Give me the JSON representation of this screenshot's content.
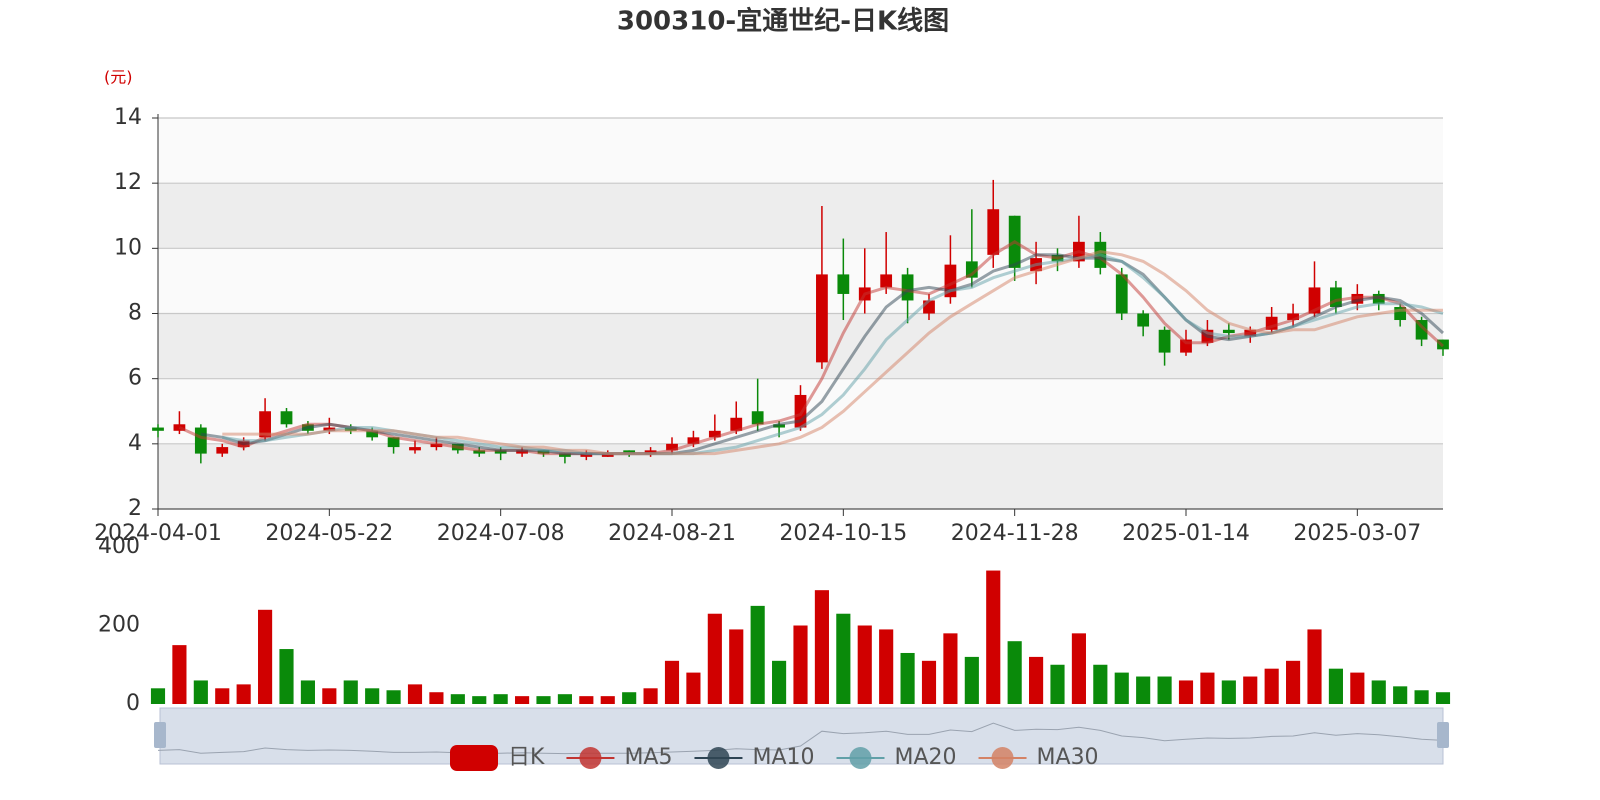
{
  "chart_data": {
    "type": "candlestick",
    "title": "300310-宜通世纪-日K线图",
    "y_unit": "(元)",
    "up_color": "#d00000",
    "down_color": "#0a8a0a",
    "grid": true,
    "ylim": [
      2,
      14
    ],
    "yticks": [
      2,
      4,
      6,
      8,
      10,
      12,
      14
    ],
    "categories": [
      "2024-04-01",
      null,
      null,
      null,
      null,
      null,
      null,
      null,
      "2024-05-22",
      null,
      null,
      null,
      null,
      null,
      null,
      null,
      "2024-07-08",
      null,
      null,
      null,
      null,
      null,
      null,
      null,
      "2024-08-21",
      null,
      null,
      null,
      null,
      null,
      null,
      null,
      "2024-10-15",
      null,
      null,
      null,
      null,
      null,
      null,
      null,
      "2024-11-28",
      null,
      null,
      null,
      null,
      null,
      null,
      null,
      "2025-01-14",
      null,
      null,
      null,
      null,
      null,
      null,
      null,
      "2025-03-07",
      null,
      null,
      null,
      null
    ],
    "series": [
      {
        "name": "日K",
        "type": "candlestick",
        "color": "#c23531",
        "values": [
          [
            4.5,
            4.4,
            4.2,
            4.6
          ],
          [
            4.4,
            4.6,
            4.3,
            5.0
          ],
          [
            4.5,
            3.7,
            3.4,
            4.6
          ],
          [
            3.7,
            3.9,
            3.6,
            4.0
          ],
          [
            3.9,
            4.1,
            3.8,
            4.2
          ],
          [
            4.2,
            5.0,
            4.1,
            5.4
          ],
          [
            5.0,
            4.6,
            4.5,
            5.1
          ],
          [
            4.6,
            4.4,
            4.3,
            4.7
          ],
          [
            4.4,
            4.5,
            4.3,
            4.8
          ],
          [
            4.5,
            4.4,
            4.3,
            4.6
          ],
          [
            4.4,
            4.2,
            4.1,
            4.5
          ],
          [
            4.2,
            3.9,
            3.7,
            4.2
          ],
          [
            3.8,
            3.9,
            3.7,
            4.1
          ],
          [
            3.9,
            4.0,
            3.8,
            4.2
          ],
          [
            4.0,
            3.8,
            3.7,
            4.0
          ],
          [
            3.8,
            3.7,
            3.6,
            3.9
          ],
          [
            3.8,
            3.7,
            3.5,
            3.9
          ],
          [
            3.7,
            3.8,
            3.6,
            3.9
          ],
          [
            3.8,
            3.7,
            3.6,
            3.8
          ],
          [
            3.7,
            3.6,
            3.4,
            3.7
          ],
          [
            3.6,
            3.7,
            3.5,
            3.8
          ],
          [
            3.6,
            3.7,
            3.6,
            3.8
          ],
          [
            3.8,
            3.7,
            3.6,
            3.8
          ],
          [
            3.7,
            3.8,
            3.6,
            3.9
          ],
          [
            3.8,
            4.0,
            3.7,
            4.2
          ],
          [
            4.0,
            4.2,
            3.9,
            4.4
          ],
          [
            4.2,
            4.4,
            4.1,
            4.9
          ],
          [
            4.4,
            4.8,
            4.3,
            5.3
          ],
          [
            5.0,
            4.6,
            4.4,
            6.0
          ],
          [
            4.6,
            4.5,
            4.2,
            4.7
          ],
          [
            4.5,
            5.5,
            4.4,
            5.8
          ],
          [
            6.5,
            9.2,
            6.3,
            11.3
          ],
          [
            9.2,
            8.6,
            7.8,
            10.3
          ],
          [
            8.4,
            8.8,
            8.0,
            10.0
          ],
          [
            8.8,
            9.2,
            8.6,
            10.5
          ],
          [
            9.2,
            8.4,
            7.7,
            9.4
          ],
          [
            8.0,
            8.4,
            7.8,
            8.6
          ],
          [
            8.5,
            9.5,
            8.3,
            10.4
          ],
          [
            9.6,
            9.1,
            8.8,
            11.2
          ],
          [
            9.8,
            11.2,
            9.4,
            12.1
          ],
          [
            11.0,
            9.4,
            9.0,
            11.0
          ],
          [
            9.3,
            9.7,
            8.9,
            10.2
          ],
          [
            9.8,
            9.6,
            9.3,
            10.0
          ],
          [
            9.6,
            10.2,
            9.4,
            11.0
          ],
          [
            10.2,
            9.4,
            9.2,
            10.5
          ],
          [
            9.2,
            8.0,
            7.8,
            9.4
          ],
          [
            8.0,
            7.6,
            7.3,
            8.1
          ],
          [
            7.5,
            6.8,
            6.4,
            7.6
          ],
          [
            6.8,
            7.2,
            6.7,
            7.5
          ],
          [
            7.1,
            7.5,
            7.0,
            7.8
          ],
          [
            7.5,
            7.4,
            7.2,
            7.7
          ],
          [
            7.3,
            7.5,
            7.1,
            7.6
          ],
          [
            7.5,
            7.9,
            7.4,
            8.2
          ],
          [
            7.8,
            8.0,
            7.6,
            8.3
          ],
          [
            8.0,
            8.8,
            7.9,
            9.6
          ],
          [
            8.8,
            8.2,
            8.0,
            9.0
          ],
          [
            8.3,
            8.6,
            8.1,
            8.9
          ],
          [
            8.6,
            8.3,
            8.1,
            8.7
          ],
          [
            8.2,
            7.8,
            7.6,
            8.3
          ],
          [
            7.8,
            7.2,
            7.0,
            7.9
          ],
          [
            7.2,
            6.9,
            6.7,
            7.2
          ]
        ]
      },
      {
        "name": "MA5",
        "type": "line",
        "color": "#c23531",
        "values": [
          null,
          4.5,
          4.2,
          4.1,
          3.9,
          4.2,
          4.4,
          4.6,
          4.6,
          4.5,
          4.4,
          4.2,
          4.1,
          4.0,
          3.9,
          3.8,
          3.8,
          3.8,
          3.7,
          3.7,
          3.7,
          3.7,
          3.7,
          3.7,
          3.8,
          4.0,
          4.2,
          4.4,
          4.6,
          4.7,
          4.9,
          6.0,
          7.4,
          8.6,
          8.8,
          8.7,
          8.6,
          8.9,
          9.2,
          9.8,
          10.2,
          9.8,
          9.7,
          9.9,
          9.7,
          9.2,
          8.5,
          7.7,
          7.1,
          7.1,
          7.3,
          7.4,
          7.6,
          7.8,
          8.1,
          8.4,
          8.5,
          8.5,
          8.3,
          7.6,
          7.0
        ]
      },
      {
        "name": "MA10",
        "type": "line",
        "color": "#2f4554",
        "values": [
          null,
          null,
          4.3,
          4.2,
          4.0,
          4.1,
          4.3,
          4.5,
          4.6,
          4.5,
          4.4,
          4.3,
          4.2,
          4.1,
          4.0,
          3.9,
          3.8,
          3.8,
          3.8,
          3.7,
          3.7,
          3.7,
          3.7,
          3.7,
          3.7,
          3.8,
          4.0,
          4.2,
          4.4,
          4.6,
          4.7,
          5.3,
          6.3,
          7.3,
          8.2,
          8.7,
          8.8,
          8.7,
          8.9,
          9.3,
          9.5,
          9.8,
          9.8,
          9.7,
          9.7,
          9.6,
          9.2,
          8.5,
          7.8,
          7.3,
          7.2,
          7.3,
          7.4,
          7.6,
          7.9,
          8.2,
          8.4,
          8.5,
          8.4,
          8.0,
          7.4
        ]
      },
      {
        "name": "MA20",
        "type": "line",
        "color": "#61a0a8",
        "values": [
          null,
          null,
          null,
          4.2,
          4.1,
          4.1,
          4.2,
          4.3,
          4.4,
          4.5,
          4.5,
          4.4,
          4.3,
          4.2,
          4.1,
          4.0,
          3.9,
          3.9,
          3.8,
          3.8,
          3.7,
          3.7,
          3.7,
          3.7,
          3.7,
          3.7,
          3.8,
          3.9,
          4.1,
          4.3,
          4.5,
          4.9,
          5.5,
          6.3,
          7.2,
          7.8,
          8.4,
          8.7,
          8.8,
          9.1,
          9.3,
          9.5,
          9.6,
          9.7,
          9.8,
          9.6,
          9.1,
          8.5,
          7.8,
          7.4,
          7.3,
          7.3,
          7.4,
          7.6,
          7.8,
          8.0,
          8.2,
          8.3,
          8.3,
          8.2,
          8.0
        ]
      },
      {
        "name": "MA30",
        "type": "line",
        "color": "#d48265",
        "values": [
          null,
          null,
          null,
          4.3,
          4.3,
          4.3,
          4.3,
          4.3,
          4.4,
          4.4,
          4.4,
          4.4,
          4.3,
          4.2,
          4.2,
          4.1,
          4.0,
          3.9,
          3.9,
          3.8,
          3.8,
          3.7,
          3.7,
          3.7,
          3.7,
          3.7,
          3.7,
          3.8,
          3.9,
          4.0,
          4.2,
          4.5,
          5.0,
          5.6,
          6.2,
          6.8,
          7.4,
          7.9,
          8.3,
          8.7,
          9.1,
          9.3,
          9.5,
          9.7,
          9.9,
          9.8,
          9.6,
          9.2,
          8.7,
          8.1,
          7.7,
          7.5,
          7.4,
          7.5,
          7.5,
          7.7,
          7.9,
          8.0,
          8.1,
          8.1,
          8.1
        ]
      }
    ],
    "volume": {
      "ylim": [
        0,
        400
      ],
      "yticks": [
        0,
        200,
        400
      ],
      "values": [
        40,
        150,
        60,
        40,
        50,
        240,
        140,
        60,
        40,
        60,
        40,
        35,
        50,
        30,
        25,
        20,
        25,
        20,
        20,
        25,
        20,
        20,
        30,
        40,
        110,
        80,
        230,
        190,
        250,
        110,
        200,
        290,
        230,
        200,
        190,
        130,
        110,
        180,
        120,
        340,
        160,
        120,
        100,
        180,
        100,
        80,
        70,
        70,
        60,
        80,
        60,
        70,
        90,
        110,
        190,
        90,
        80,
        60,
        45,
        35,
        30
      ]
    }
  }
}
